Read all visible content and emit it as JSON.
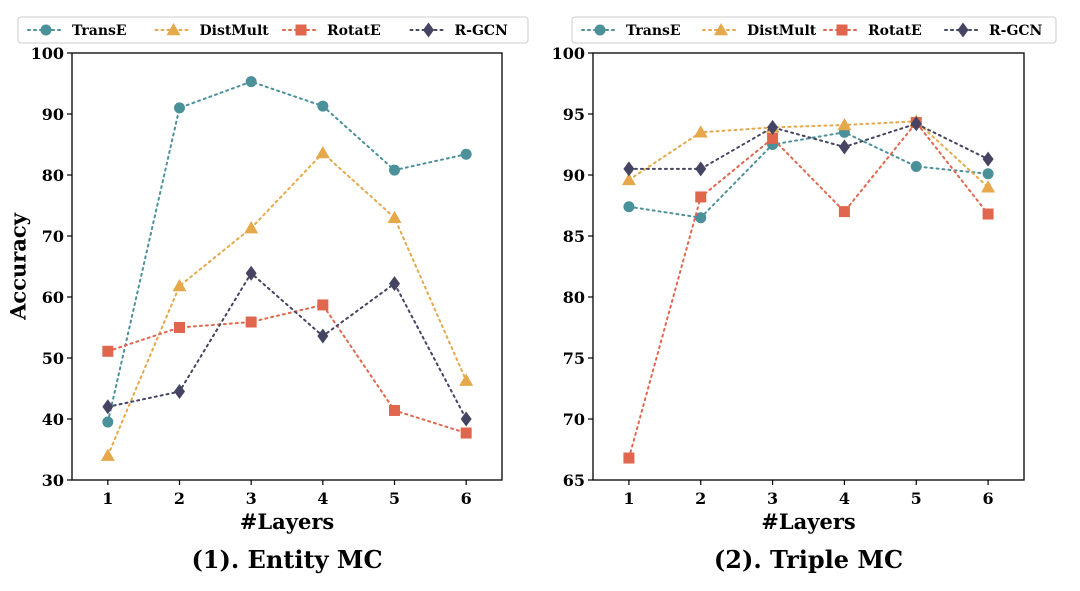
{
  "colors": {
    "TransE": "#4a9199",
    "DistMult": "#e5a84b",
    "RotatE": "#e0674e",
    "R-GCN": "#454563",
    "axis": "#000000",
    "legend_border": "#cccccc"
  },
  "chart_data": [
    {
      "type": "line",
      "title": "(1). Entity MC",
      "xlabel": "#Layers",
      "ylabel": "Accuracy",
      "x": [
        1,
        2,
        3,
        4,
        5,
        6
      ],
      "xticks": [
        "1",
        "2",
        "3",
        "4",
        "5",
        "6"
      ],
      "ylim": [
        30,
        100
      ],
      "yticks": [
        "30",
        "40",
        "50",
        "60",
        "70",
        "80",
        "90",
        "100"
      ],
      "legend_position": "top",
      "series": [
        {
          "name": "TransE",
          "marker": "circle",
          "values": [
            39.5,
            91,
            95.3,
            91.3,
            80.8,
            83.4
          ]
        },
        {
          "name": "DistMult",
          "marker": "triangle",
          "values": [
            34,
            61.8,
            71.3,
            83.6,
            73,
            46.3
          ]
        },
        {
          "name": "RotatE",
          "marker": "square",
          "values": [
            51.1,
            55,
            55.9,
            58.7,
            41.4,
            37.7
          ]
        },
        {
          "name": "R-GCN",
          "marker": "diamond",
          "values": [
            42,
            44.5,
            63.9,
            53.6,
            62.2,
            40
          ]
        }
      ]
    },
    {
      "type": "line",
      "title": "(2). Triple MC",
      "xlabel": "#Layers",
      "ylabel": "",
      "x": [
        1,
        2,
        3,
        4,
        5,
        6
      ],
      "xticks": [
        "1",
        "2",
        "3",
        "4",
        "5",
        "6"
      ],
      "ylim": [
        65,
        100
      ],
      "yticks": [
        "65",
        "70",
        "75",
        "80",
        "85",
        "90",
        "95",
        "100"
      ],
      "legend_position": "top",
      "series": [
        {
          "name": "TransE",
          "marker": "circle",
          "values": [
            87.4,
            86.5,
            92.5,
            93.5,
            90.7,
            90.1
          ]
        },
        {
          "name": "DistMult",
          "marker": "triangle",
          "values": [
            89.6,
            93.5,
            93.9,
            94.1,
            94.4,
            89
          ]
        },
        {
          "name": "RotatE",
          "marker": "square",
          "values": [
            66.8,
            88.2,
            93,
            87,
            94.3,
            86.8
          ]
        },
        {
          "name": "R-GCN",
          "marker": "diamond",
          "values": [
            90.5,
            90.5,
            93.9,
            92.3,
            94.2,
            91.3
          ]
        }
      ]
    }
  ]
}
